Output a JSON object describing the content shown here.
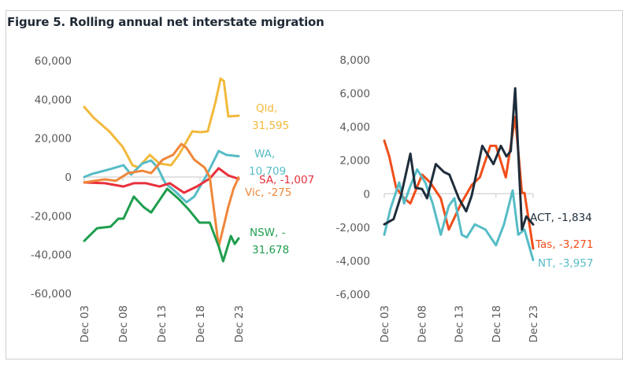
{
  "title": "Figure 5. Rolling annual net interstate migration",
  "chart_data": [
    {
      "type": "line",
      "title": "",
      "xlabel": "",
      "ylabel": "",
      "x_ticks": [
        "Dec 03",
        "Dec 08",
        "Dec 13",
        "Dec 18",
        "Dec 23"
      ],
      "x_tick_dates": [
        "2003-12",
        "2008-12",
        "2013-12",
        "2018-12",
        "2023-12"
      ],
      "y_ticks": [
        60000,
        40000,
        20000,
        0,
        -20000,
        -40000,
        -60000
      ],
      "y_tick_labels": [
        "60,000",
        "40,000",
        "20,000",
        "0",
        "-20,000",
        "-40,000",
        "-60,000"
      ],
      "ylim": [
        -60000,
        60000
      ],
      "grid": false,
      "series": [
        {
          "name": "Qld",
          "end_label": [
            "Qld,",
            "31,595"
          ],
          "color": "#f2b93b",
          "x": [
            "2003-12",
            "2005-03",
            "2007-03",
            "2008-12",
            "2010-03",
            "2010-12",
            "2012-06",
            "2013-09",
            "2015-03",
            "2016-03",
            "2017-12",
            "2019-01",
            "2019-12",
            "2020-12",
            "2021-08",
            "2022-01",
            "2022-08",
            "2023-12"
          ],
          "y": [
            36100,
            30400,
            23500,
            15400,
            6100,
            4900,
            11400,
            6900,
            6100,
            11400,
            23500,
            23100,
            23500,
            38500,
            50700,
            49500,
            31200,
            31595
          ]
        },
        {
          "name": "WA",
          "end_label": [
            "WA,",
            "10,709"
          ],
          "color": "#56bcc6",
          "x": [
            "2003-12",
            "2004-12",
            "2007-04",
            "2009-01",
            "2010-01",
            "2011-06",
            "2012-08",
            "2013-06",
            "2014-06",
            "2015-09",
            "2017-03",
            "2018-03",
            "2019-10",
            "2021-05",
            "2022-05",
            "2023-12"
          ],
          "y": [
            0,
            1600,
            4000,
            6100,
            1200,
            6900,
            8500,
            4900,
            -3200,
            -7300,
            -13000,
            -10100,
            800,
            13400,
            11400,
            10709
          ]
        },
        {
          "name": "SA",
          "end_label": [
            "SA, -1,007"
          ],
          "color": "#e8303c",
          "x": [
            "2003-12",
            "2006-08",
            "2009-01",
            "2010-05",
            "2011-12",
            "2013-09",
            "2015-01",
            "2016-11",
            "2018-07",
            "2020-03",
            "2021-05",
            "2022-08",
            "2023-12"
          ],
          "y": [
            -2800,
            -3200,
            -4900,
            -3200,
            -3200,
            -4900,
            -3200,
            -8100,
            -4900,
            -800,
            4500,
            800,
            -1007
          ]
        },
        {
          "name": "Vic",
          "end_label": [
            "Vic, -275"
          ],
          "color": "#f0873a",
          "x": [
            "2003-12",
            "2006-08",
            "2008-01",
            "2009-08",
            "2011-06",
            "2012-08",
            "2014-02",
            "2015-06",
            "2016-07",
            "2017-03",
            "2018-03",
            "2019-07",
            "2020-03",
            "2021-05",
            "2021-12",
            "2022-08",
            "2023-04",
            "2023-12"
          ],
          "y": [
            -2800,
            -1200,
            -2000,
            2000,
            3200,
            2000,
            8900,
            11400,
            17000,
            15000,
            8900,
            4900,
            0,
            -35700,
            -26400,
            -15400,
            -6100,
            -275
          ]
        },
        {
          "name": "NSW",
          "end_label": [
            "NSW, -",
            "31,678"
          ],
          "color": "#1f9e4e",
          "x": [
            "2003-12",
            "2005-08",
            "2007-05",
            "2008-05",
            "2009-01",
            "2010-05",
            "2011-08",
            "2012-08",
            "2014-09",
            "2016-03",
            "2017-07",
            "2018-11",
            "2020-03",
            "2021-05",
            "2021-12",
            "2022-12",
            "2023-06",
            "2023-12"
          ],
          "y": [
            -32900,
            -26400,
            -25600,
            -21500,
            -21500,
            -10100,
            -15400,
            -18300,
            -6100,
            -11400,
            -17000,
            -23500,
            -23500,
            -35700,
            -43400,
            -30400,
            -34500,
            -31678
          ]
        }
      ]
    },
    {
      "type": "line",
      "title": "",
      "xlabel": "",
      "ylabel": "",
      "x_ticks": [
        "Dec 03",
        "Dec 08",
        "Dec 13",
        "Dec 18",
        "Dec 23"
      ],
      "x_tick_dates": [
        "2003-12",
        "2008-12",
        "2013-12",
        "2018-12",
        "2023-12"
      ],
      "y_ticks": [
        8000,
        6000,
        4000,
        2000,
        0,
        -2000,
        -4000,
        -6000
      ],
      "y_tick_labels": [
        "8,000",
        "6,000",
        "4,000",
        "2,000",
        "0",
        "-2,000",
        "-4,000",
        "-6,000"
      ],
      "ylim": [
        -6000,
        8000
      ],
      "grid": false,
      "series": [
        {
          "name": "Tas",
          "end_label": [
            "Tas, -3,271"
          ],
          "color": "#f04e1a",
          "x": [
            "2003-12",
            "2004-08",
            "2005-07",
            "2006-08",
            "2007-06",
            "2009-01",
            "2010-02",
            "2011-07",
            "2012-08",
            "2014-04",
            "2015-09",
            "2016-10",
            "2018-03",
            "2018-12",
            "2020-04",
            "2021-07",
            "2022-06",
            "2022-10",
            "2023-12"
          ],
          "y": [
            3170,
            2230,
            360,
            -270,
            -580,
            1140,
            670,
            -270,
            -2140,
            -580,
            520,
            980,
            2860,
            2860,
            980,
            4580,
            50,
            50,
            -3271
          ]
        },
        {
          "name": "NT",
          "end_label": [
            "NT, -3,957"
          ],
          "color": "#56bcc6",
          "x": [
            "2003-12",
            "2004-10",
            "2005-12",
            "2006-08",
            "2007-05",
            "2008-05",
            "2009-06",
            "2010-06",
            "2011-07",
            "2012-08",
            "2013-05",
            "2014-05",
            "2015-01",
            "2016-02",
            "2017-07",
            "2018-12",
            "2020-01",
            "2021-03",
            "2021-12",
            "2022-10",
            "2023-12"
          ],
          "y": [
            -2450,
            -890,
            670,
            -580,
            360,
            1450,
            670,
            -580,
            -2450,
            -730,
            -270,
            -2450,
            -2610,
            -1830,
            -2140,
            -3080,
            -1830,
            200,
            -2450,
            -2140,
            -3957
          ]
        },
        {
          "name": "ACT",
          "end_label": [
            "ACT, -1,834"
          ],
          "color": "#1e2d3b",
          "x": [
            "2003-12",
            "2005-03",
            "2006-03",
            "2007-06",
            "2008-02",
            "2009-01",
            "2009-09",
            "2010-11",
            "2011-12",
            "2012-09",
            "2013-12",
            "2014-12",
            "2015-09",
            "2017-02",
            "2018-08",
            "2019-08",
            "2020-05",
            "2020-12",
            "2021-07",
            "2022-06",
            "2023-01",
            "2023-12"
          ],
          "y": [
            -1830,
            -1520,
            -110,
            2390,
            360,
            280,
            -270,
            1770,
            1300,
            1140,
            -270,
            -1050,
            -110,
            2860,
            1770,
            2860,
            2230,
            2550,
            6300,
            -2140,
            -1360,
            -1834
          ]
        }
      ]
    }
  ]
}
